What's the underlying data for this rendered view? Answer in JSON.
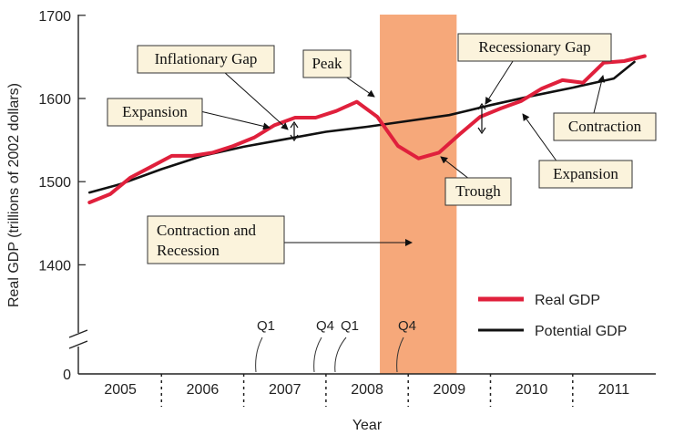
{
  "chart_data": {
    "type": "line",
    "ylabel": "Real GDP (trillions of 2002 dollars)",
    "xlabel": "Year",
    "ylim": [
      1300,
      1700
    ],
    "yticks": [
      "1700",
      "1600",
      "1500",
      "1400"
    ],
    "y_zero_label": "0",
    "years": [
      "2005",
      "2006",
      "2007",
      "2008",
      "2009",
      "2010",
      "2011"
    ],
    "quarter_markers": [
      {
        "label": "Q1",
        "year": "2007",
        "quarter": 1
      },
      {
        "label": "Q4",
        "year": "2007",
        "quarter": 4
      },
      {
        "label": "Q1",
        "year": "2008",
        "quarter": 1
      },
      {
        "label": "Q4",
        "year": "2008",
        "quarter": 4
      }
    ],
    "recession_shading": {
      "from": 2008.0,
      "to": 2009.0,
      "color": "#f6a87a"
    },
    "series": [
      {
        "name": "Real GDP",
        "color": "#e0203c",
        "x": [
          2004.625,
          2004.875,
          2005.125,
          2005.375,
          2005.625,
          2005.875,
          2006.125,
          2006.375,
          2006.625,
          2006.875,
          2007.125,
          2007.375,
          2007.625,
          2007.875,
          2008.125,
          2008.375,
          2008.625,
          2008.875,
          2009.125,
          2009.375,
          2009.625,
          2009.875,
          2010.125,
          2010.375,
          2010.625,
          2010.875,
          2011.125,
          2011.375
        ],
        "y": [
          1475,
          1485,
          1505,
          1518,
          1531,
          1531,
          1535,
          1543,
          1553,
          1568,
          1577,
          1577,
          1585,
          1596,
          1578,
          1543,
          1528,
          1535,
          1557,
          1578,
          1588,
          1597,
          1612,
          1622,
          1619,
          1643,
          1645,
          1651
        ]
      },
      {
        "name": "Potential GDP",
        "color": "#111111",
        "x": [
          2004.625,
          2005.0,
          2005.5,
          2006.0,
          2006.5,
          2007.0,
          2007.5,
          2008.0,
          2008.5,
          2009.0,
          2009.5,
          2010.0,
          2010.5,
          2011.0,
          2011.25
        ],
        "y": [
          1487,
          1497,
          1515,
          1531,
          1542,
          1551,
          1560,
          1566,
          1573,
          1580,
          1592,
          1603,
          1613,
          1624,
          1644
        ]
      }
    ],
    "annotations": {
      "inflationary_gap": "Inflationary Gap",
      "peak": "Peak",
      "recessionary_gap": "Recessionary Gap",
      "expansion_left": "Expansion",
      "contraction": "Contraction",
      "trough": "Trough",
      "expansion_right": "Expansion",
      "contraction_recession": [
        "Contraction and",
        "Recession"
      ]
    },
    "legend_position": "bottom-right"
  }
}
